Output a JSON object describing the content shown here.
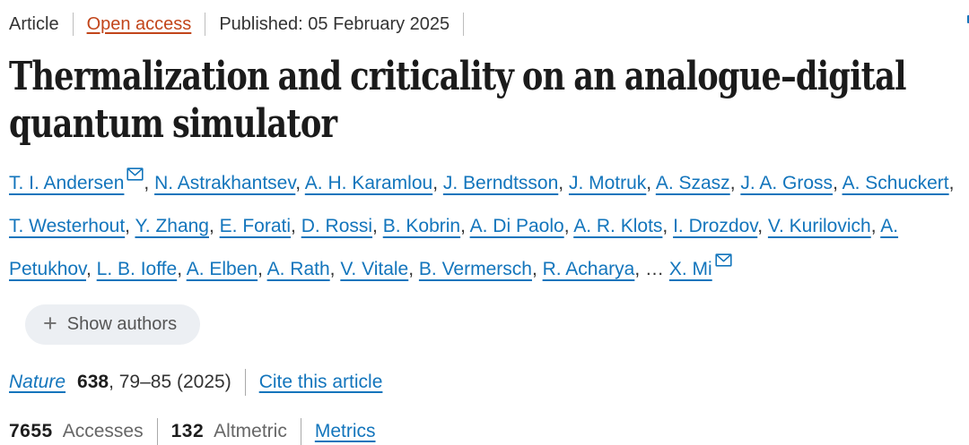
{
  "meta_bar": {
    "type_label": "Article",
    "access_label": "Open access",
    "published_label": "Published: 05 February 2025"
  },
  "title": "Thermalization and criticality on an analogue–digital quantum simulator",
  "authors": {
    "names": [
      {
        "name": "T. I. Andersen",
        "corresponding": true
      },
      {
        "name": "N. Astrakhantsev",
        "corresponding": false
      },
      {
        "name": "A. H. Karamlou",
        "corresponding": false
      },
      {
        "name": "J. Berndtsson",
        "corresponding": false
      },
      {
        "name": "J. Motruk",
        "corresponding": false
      },
      {
        "name": "A. Szasz",
        "corresponding": false
      },
      {
        "name": "J. A. Gross",
        "corresponding": false
      },
      {
        "name": "A. Schuckert",
        "corresponding": false
      },
      {
        "name": "T. Westerhout",
        "corresponding": false
      },
      {
        "name": "Y. Zhang",
        "corresponding": false
      },
      {
        "name": "E. Forati",
        "corresponding": false
      },
      {
        "name": "D. Rossi",
        "corresponding": false
      },
      {
        "name": "B. Kobrin",
        "corresponding": false
      },
      {
        "name": "A. Di Paolo",
        "corresponding": false
      },
      {
        "name": "A. R. Klots",
        "corresponding": false
      },
      {
        "name": "I. Drozdov",
        "corresponding": false
      },
      {
        "name": "V. Kurilovich",
        "corresponding": false
      },
      {
        "name": "A. Petukhov",
        "corresponding": false
      },
      {
        "name": "L. B. Ioffe",
        "corresponding": false
      },
      {
        "name": "A. Elben",
        "corresponding": false
      },
      {
        "name": "A. Rath",
        "corresponding": false
      },
      {
        "name": "V. Vitale",
        "corresponding": false
      },
      {
        "name": "B. Vermersch",
        "corresponding": false
      },
      {
        "name": "R. Acharya",
        "corresponding": false
      },
      {
        "name": "X. Mi",
        "corresponding": true
      }
    ],
    "ellipsis": "…",
    "show_authors_label": "Show authors",
    "plus_icon": "+"
  },
  "citation": {
    "journal": "Nature",
    "volume": "638",
    "pages_year": ", 79–85 (2025)",
    "cite_link": "Cite this article"
  },
  "metrics": {
    "accesses_count": "7655",
    "accesses_label": "Accesses",
    "altmetric_count": "132",
    "altmetric_label": "Altmetric",
    "metrics_link": "Metrics"
  },
  "colors": {
    "link_blue": "#1375bc",
    "open_access_orange": "#c2451a",
    "text_dark": "#1f1f1f",
    "gray_label": "#666666",
    "sep_gray": "#a9a9a9",
    "button_bg": "#eceff3",
    "button_text": "#555555"
  }
}
